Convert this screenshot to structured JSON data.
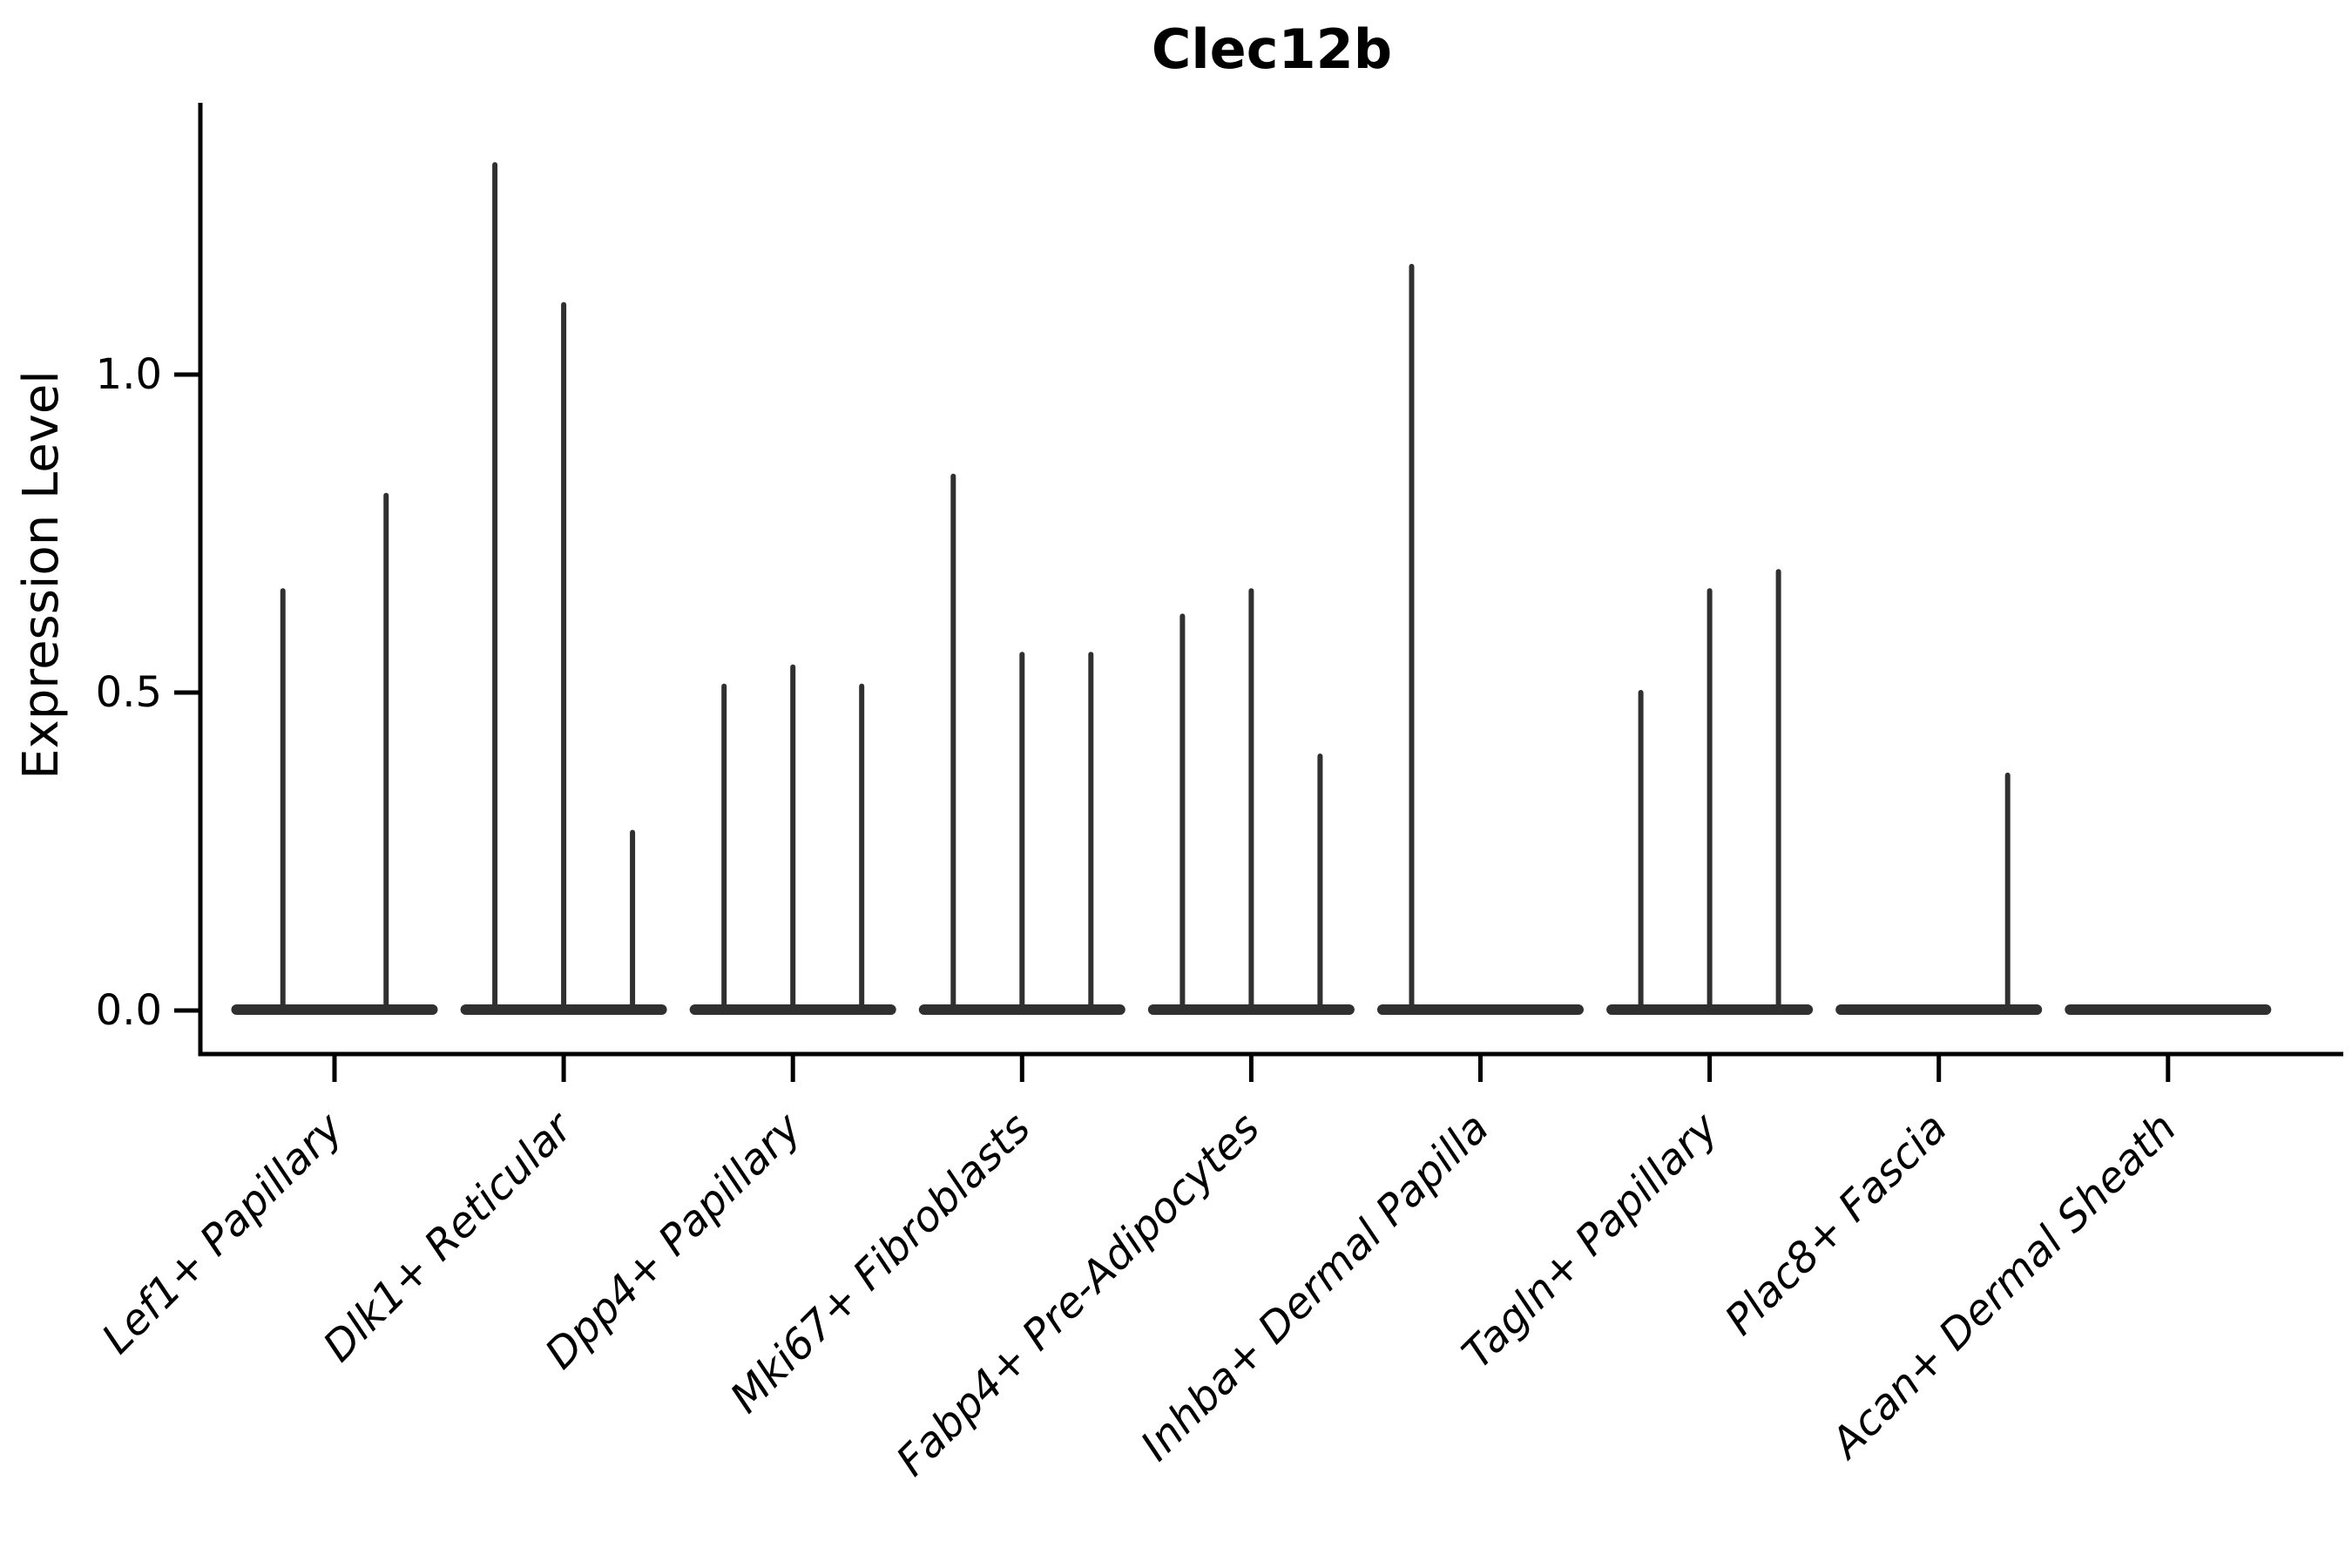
{
  "title": "Clec12b",
  "ylabel": "Expression Level",
  "colors": {
    "violin": "#303030",
    "axis": "#000000",
    "text": "#000000",
    "background": "#ffffff"
  },
  "chart_data": {
    "type": "violin",
    "title": "Clec12b",
    "xlabel": "",
    "ylabel": "Expression Level",
    "ylim": [
      0,
      1.43
    ],
    "yticks": [
      0.0,
      0.5,
      1.0
    ],
    "ytick_labels": [
      "0.0",
      "0.5",
      "1.0"
    ],
    "grid": false,
    "legend": "none",
    "description": "Each category holds thin spike-shaped violins: a flat density base at expression 0 plus a narrow tail rising to the listed maximum expression value.",
    "categories": [
      "Lef1+ Papillary",
      "Dlk1+ Reticular",
      "Dpp4+ Papillary",
      "Mki67+ Fibroblasts",
      "Fabp4+ Pre-Adipocytes",
      "Inhba+ Dermal Papilla",
      "Tagln+ Papillary",
      "Plac8+ Fascia",
      "Acan+ Dermal Sheath"
    ],
    "series": [
      {
        "name": "Lef1+ Papillary",
        "violin_maxima": [
          0.66,
          0.81
        ]
      },
      {
        "name": "Dlk1+ Reticular",
        "violin_maxima": [
          1.33,
          1.11,
          0.28
        ]
      },
      {
        "name": "Dpp4+ Papillary",
        "violin_maxima": [
          0.51,
          0.54,
          0.51
        ]
      },
      {
        "name": "Mki67+ Fibroblasts",
        "violin_maxima": [
          0.84,
          0.56,
          0.56
        ]
      },
      {
        "name": "Fabp4+ Pre-Adipocytes",
        "violin_maxima": [
          0.62,
          0.66,
          0.4
        ]
      },
      {
        "name": "Inhba+ Dermal Papilla",
        "violin_maxima": [
          1.17,
          0,
          0
        ]
      },
      {
        "name": "Tagln+ Papillary",
        "violin_maxima": [
          0.5,
          0.66,
          0.69
        ]
      },
      {
        "name": "Plac8+ Fascia",
        "violin_maxima": [
          0,
          0,
          0.37
        ]
      },
      {
        "name": "Acan+ Dermal Sheath",
        "violin_maxima": [
          0,
          0,
          0
        ]
      }
    ]
  }
}
